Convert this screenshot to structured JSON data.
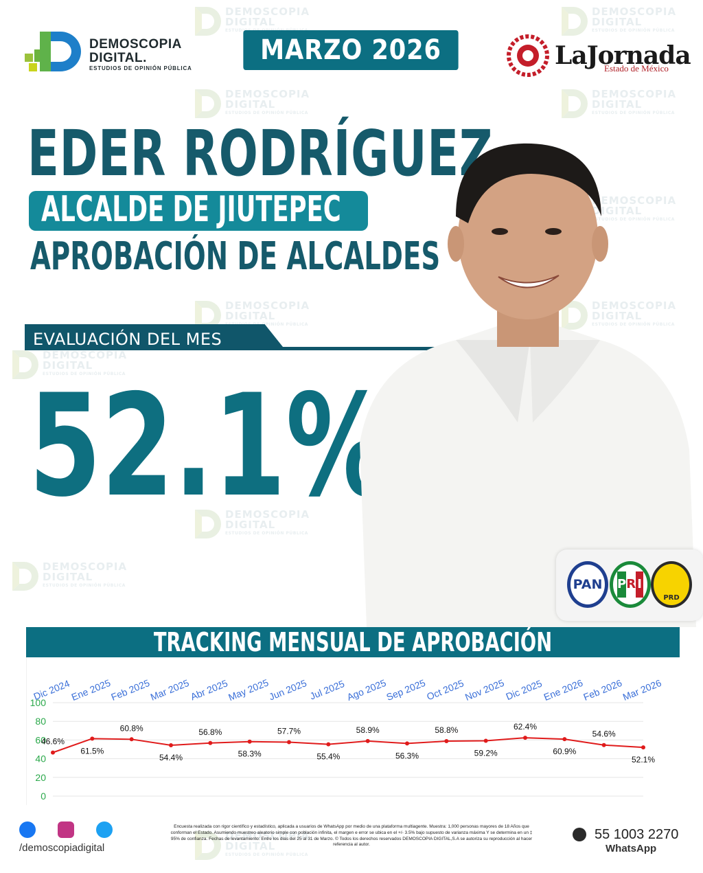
{
  "header": {
    "brand_line1": "DEMOSCOPIA",
    "brand_line2": "DIGITAL.",
    "brand_line3": "ESTUDIOS DE OPINIÓN PÚBLICA",
    "date": "MARZO 2026",
    "partner_name": "LaJornada",
    "partner_sub": "Estado de México"
  },
  "watermark": {
    "line1": "DEMOSCOPIA",
    "line2": "DIGITAL",
    "line3": "ESTUDIOS DE OPINIÓN PÚBLICA"
  },
  "headline": {
    "name": "EDER RODRÍGUEZ",
    "role": "ALCALDE DE JIUTEPEC",
    "subtitle": "APROBACIÓN DE ALCALDES",
    "eval_label": "EVALUACIÓN DEL MES",
    "value": "52.1%"
  },
  "parties": {
    "pan": "PAN",
    "pri_letters": [
      "P",
      "R",
      "I"
    ],
    "prd": "PRD"
  },
  "chart_title": "TRACKING MENSUAL DE APROBACIÓN",
  "chart_data": {
    "type": "line",
    "title": "TRACKING MENSUAL DE APROBACIÓN",
    "categories": [
      "Dic 2024",
      "Ene 2025",
      "Feb 2025",
      "Mar 2025",
      "Abr 2025",
      "May 2025",
      "Jun 2025",
      "Jul 2025",
      "Ago 2025",
      "Sep 2025",
      "Oct 2025",
      "Nov 2025",
      "Dic 2025",
      "Ene 2026",
      "Feb 2026",
      "Mar 2026"
    ],
    "series": [
      {
        "values": [
          46.6,
          61.5,
          60.8,
          54.4,
          56.8,
          58.3,
          57.7,
          55.4,
          58.9,
          56.3,
          58.8,
          59.2,
          62.4,
          60.9,
          54.6,
          52.1
        ],
        "labels": [
          "46.6%",
          "61.5%",
          "60.8%",
          "54.4%",
          "56.8%",
          "58.3%",
          "57.7%",
          "55.4%",
          "58.9%",
          "56.3%",
          "58.8%",
          "59.2%",
          "62.4%",
          "60.9%",
          "54.6%",
          "52.1%"
        ],
        "color": "#e01b1b"
      }
    ],
    "ylim": [
      0,
      100
    ],
    "yticks": [
      0,
      20,
      40,
      60,
      80,
      100
    ],
    "grid": true,
    "xlabel": "",
    "ylabel": ""
  },
  "colors": {
    "primary": "#0c6f82",
    "dark": "#165a6b",
    "accent": "#148a9a",
    "line": "#e01b1b",
    "xlabel": "#3a6fd8",
    "ylabel": "#2aa84a"
  },
  "footer": {
    "handle": "/demoscopiadigital",
    "disclaimer": "Encuesta realizada con rigor científico y estadístico, aplicada a usuarios de WhatsApp por medio de una plataforma multiagente. Muestra: 1,000 personas mayores de 18 Años que conforman el Estado. Asumiendo muestreo aleatorio simple con población infinita, el margen e error se ubica en el +/- 3.5% bajo supuesto de varianza máxima Y se determina en un ‡ 95% de confianza. Fechas de levantamiento: Entre los días del 25 al 31 de Marzo. © Todos los derechos reservados DEMOSCOPIA DIGITAL,S.A se autoriza su reproducción al hacer referencia al autor.",
    "phone": "55 1003 2270",
    "whatsapp": "WhatsApp",
    "icons": [
      "facebook-icon",
      "instagram-icon",
      "twitter-icon",
      "whatsapp-icon"
    ]
  }
}
